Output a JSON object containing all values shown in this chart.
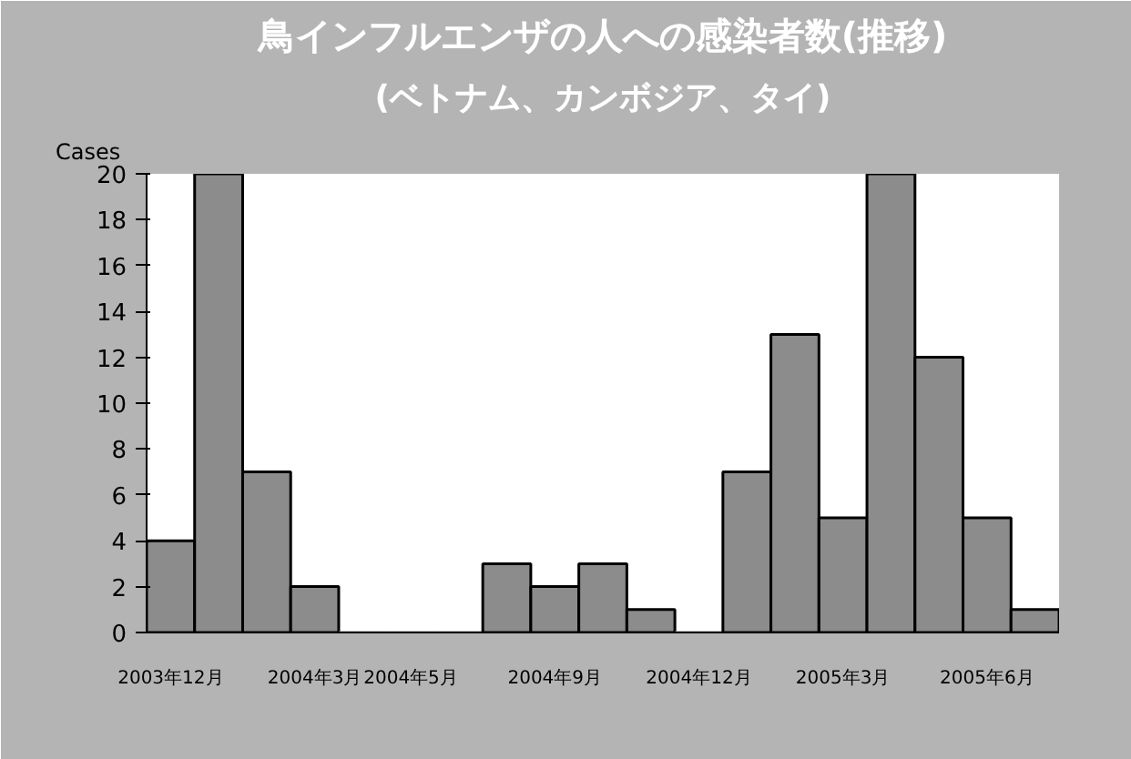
{
  "chart_data": {
    "type": "bar",
    "title": "鳥インフルエンザの人への感染者数(推移)",
    "subtitle": "(ベトナム、カンボジア、タイ)",
    "ylabel": "Cases",
    "categories": [
      "2003年12月",
      null,
      null,
      "2004年3月",
      null,
      "2004年5月",
      null,
      null,
      "2004年9月",
      null,
      null,
      "2004年12月",
      null,
      null,
      "2005年3月",
      null,
      null,
      "2005年6月",
      null
    ],
    "values": [
      4,
      20,
      7,
      2,
      0,
      0,
      0,
      3,
      2,
      3,
      1,
      0,
      7,
      13,
      5,
      20,
      12,
      5,
      1
    ],
    "color": "#8c8c8c",
    "ylim": [
      0,
      20
    ],
    "yticks": [
      0,
      2,
      4,
      6,
      8,
      10,
      12,
      14,
      16,
      18,
      20
    ],
    "grid": false
  }
}
